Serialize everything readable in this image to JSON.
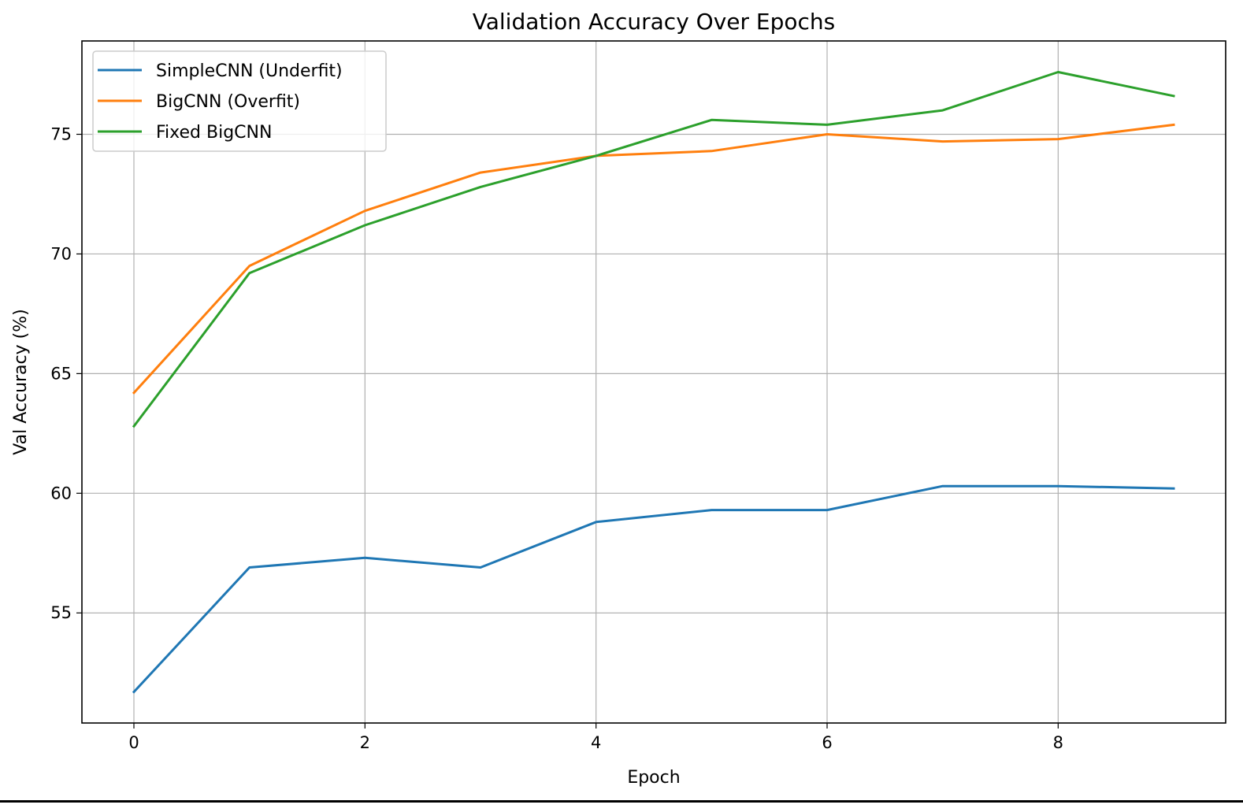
{
  "chart_data": {
    "type": "line",
    "title": "Validation Accuracy Over Epochs",
    "xlabel": "Epoch",
    "ylabel": "Val Accuracy (%)",
    "x": [
      0,
      1,
      2,
      3,
      4,
      5,
      6,
      7,
      8,
      9
    ],
    "xlim": [
      -0.45,
      9.45
    ],
    "ylim": [
      50.4,
      78.9
    ],
    "xticks": [
      0,
      2,
      4,
      6,
      8
    ],
    "yticks": [
      55,
      60,
      65,
      70,
      75
    ],
    "grid": true,
    "legend_position": "upper left",
    "series": [
      {
        "name": "SimpleCNN (Underfit)",
        "color": "#1f77b4",
        "values": [
          51.7,
          56.9,
          57.3,
          56.9,
          58.8,
          59.3,
          59.3,
          60.3,
          60.3,
          60.2
        ]
      },
      {
        "name": "BigCNN (Overfit)",
        "color": "#ff7f0e",
        "values": [
          64.2,
          69.5,
          71.8,
          73.4,
          74.1,
          74.3,
          75.0,
          74.7,
          74.8,
          75.4
        ]
      },
      {
        "name": "Fixed BigCNN",
        "color": "#2ca02c",
        "values": [
          62.8,
          69.2,
          71.2,
          72.8,
          74.1,
          75.6,
          75.4,
          76.0,
          77.6,
          76.6
        ]
      }
    ]
  }
}
